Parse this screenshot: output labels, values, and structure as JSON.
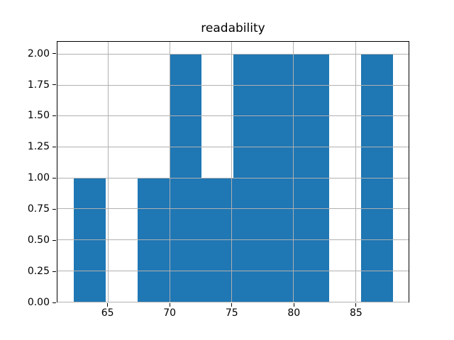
{
  "figure": {
    "background": "#ffffff"
  },
  "chart_data": {
    "type": "bar",
    "subtype": "histogram",
    "title": "readability",
    "xlabel": "",
    "ylabel": "",
    "bin_edges": [
      62.2,
      64.78,
      67.36,
      69.94,
      72.52,
      75.1,
      77.68,
      80.26,
      82.84,
      85.42,
      88.0
    ],
    "values": [
      1,
      0,
      1,
      2,
      1,
      2,
      2,
      2,
      0,
      2
    ],
    "xlim": [
      60.91,
      89.29
    ],
    "ylim": [
      0,
      2.1
    ],
    "xticks": [
      {
        "value": 65,
        "label": "65"
      },
      {
        "value": 70,
        "label": "70"
      },
      {
        "value": 75,
        "label": "75"
      },
      {
        "value": 80,
        "label": "80"
      },
      {
        "value": 85,
        "label": "85"
      }
    ],
    "yticks": [
      {
        "value": 0.0,
        "label": "0.00"
      },
      {
        "value": 0.25,
        "label": "0.25"
      },
      {
        "value": 0.5,
        "label": "0.50"
      },
      {
        "value": 0.75,
        "label": "0.75"
      },
      {
        "value": 1.0,
        "label": "1.00"
      },
      {
        "value": 1.25,
        "label": "1.25"
      },
      {
        "value": 1.5,
        "label": "1.50"
      },
      {
        "value": 1.75,
        "label": "1.75"
      },
      {
        "value": 2.0,
        "label": "2.00"
      }
    ],
    "grid": "on",
    "grid_position": "above-bars",
    "legend": "none",
    "bar_color": "#1f77b4",
    "grid_color": "#b0b0b0",
    "spine_color": "#000000",
    "text_color": "#000000"
  }
}
